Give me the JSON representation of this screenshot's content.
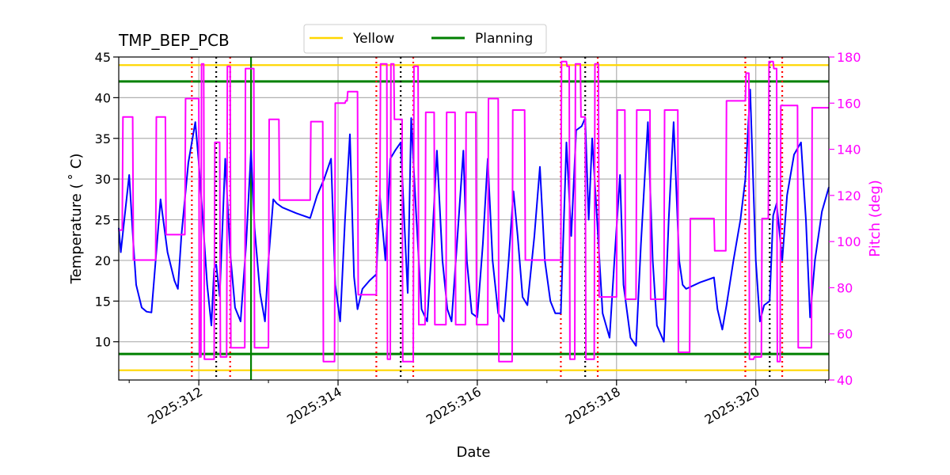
{
  "chart_data": {
    "type": "line",
    "title": "TMP_BEP_PCB",
    "xlabel": "Date",
    "ylabel": "Temperature ($^\\circ$C)",
    "ylabel_display": "Temperature ( ˚ C)",
    "y2label": "Pitch (deg)",
    "xlim": [
      310.85,
      321.05
    ],
    "ylim": [
      5.3,
      45
    ],
    "y2lim": [
      40,
      180
    ],
    "x_ticks": [
      312,
      314,
      316,
      318,
      320
    ],
    "x_tick_labels": [
      "2025:312",
      "2025:314",
      "2025:316",
      "2025:318",
      "2025:320"
    ],
    "x_minor_ticks": [
      311,
      313,
      315,
      317,
      319,
      321
    ],
    "y_ticks": [
      10,
      15,
      20,
      25,
      30,
      35,
      40,
      45
    ],
    "y_tick_labels": [
      "10",
      "15",
      "20",
      "25",
      "30",
      "35",
      "40",
      "45"
    ],
    "y2_ticks": [
      40,
      60,
      80,
      100,
      120,
      140,
      160,
      180
    ],
    "y2_tick_labels": [
      "40",
      "60",
      "80",
      "100",
      "120",
      "140",
      "160",
      "180"
    ],
    "grid": true,
    "legend": {
      "placement": "top-center",
      "entries": [
        {
          "label": "Yellow",
          "color": "#ffd700"
        },
        {
          "label": "Planning",
          "color": "#008000"
        }
      ]
    },
    "limits": [
      {
        "name": "yellow-high",
        "value": 44,
        "color": "#ffd700"
      },
      {
        "name": "yellow-low",
        "value": 6.5,
        "color": "#ffd700"
      },
      {
        "name": "planning-high",
        "value": 42,
        "color": "#008000"
      },
      {
        "name": "planning-low",
        "value": 8.5,
        "color": "#008000"
      }
    ],
    "vlines": [
      {
        "x": 311.9,
        "color": "#ff0000",
        "style": "dotted"
      },
      {
        "x": 312.25,
        "color": "#000000",
        "style": "dotted"
      },
      {
        "x": 312.45,
        "color": "#ff0000",
        "style": "dotted"
      },
      {
        "x": 312.75,
        "color": "#008000",
        "style": "solid"
      },
      {
        "x": 314.55,
        "color": "#ff0000",
        "style": "dotted"
      },
      {
        "x": 314.9,
        "color": "#000000",
        "style": "dotted"
      },
      {
        "x": 315.08,
        "color": "#ff0000",
        "style": "dotted"
      },
      {
        "x": 317.2,
        "color": "#ff0000",
        "style": "dotted"
      },
      {
        "x": 317.55,
        "color": "#000000",
        "style": "dotted"
      },
      {
        "x": 317.73,
        "color": "#ff0000",
        "style": "dotted"
      },
      {
        "x": 319.85,
        "color": "#ff0000",
        "style": "dotted"
      },
      {
        "x": 320.2,
        "color": "#000000",
        "style": "dotted"
      },
      {
        "x": 320.38,
        "color": "#ff0000",
        "style": "dotted"
      }
    ],
    "series": [
      {
        "name": "Temperature",
        "axis": "left",
        "color": "#0000ff",
        "x": [
          310.85,
          310.88,
          310.93,
          311.0,
          311.06,
          311.1,
          311.18,
          311.25,
          311.32,
          311.38,
          311.45,
          311.55,
          311.65,
          311.7,
          311.75,
          311.85,
          311.95,
          312.0,
          312.05,
          312.12,
          312.18,
          312.22,
          312.25,
          312.3,
          312.38,
          312.45,
          312.52,
          312.6,
          312.68,
          312.75,
          312.8,
          312.88,
          312.95,
          313.0,
          313.07,
          313.12,
          313.2,
          313.4,
          313.6,
          313.7,
          313.8,
          313.9,
          313.96,
          314.03,
          314.1,
          314.17,
          314.23,
          314.28,
          314.35,
          314.45,
          314.55,
          314.6,
          314.68,
          314.75,
          314.82,
          314.9,
          314.95,
          315.0,
          315.05,
          315.12,
          315.2,
          315.28,
          315.35,
          315.42,
          315.5,
          315.57,
          315.63,
          315.7,
          315.8,
          315.85,
          315.92,
          316.0,
          316.08,
          316.15,
          316.22,
          316.3,
          316.38,
          316.45,
          316.52,
          316.58,
          316.65,
          316.72,
          316.82,
          316.9,
          316.97,
          317.05,
          317.12,
          317.2,
          317.28,
          317.35,
          317.42,
          317.5,
          317.55,
          317.6,
          317.65,
          317.72,
          317.8,
          317.9,
          317.97,
          318.05,
          318.1,
          318.2,
          318.28,
          318.35,
          318.45,
          318.52,
          318.58,
          318.68,
          318.75,
          318.82,
          318.9,
          318.95,
          319.0,
          319.2,
          319.4,
          319.45,
          319.52,
          319.58,
          319.68,
          319.78,
          319.85,
          319.92,
          320.0,
          320.06,
          320.12,
          320.2,
          320.25,
          320.3,
          320.38,
          320.45,
          320.55,
          320.65,
          320.72,
          320.78,
          320.85,
          320.95,
          321.05
        ],
        "y": [
          24,
          21,
          25,
          30.5,
          22,
          17,
          14.2,
          13.7,
          13.6,
          20,
          27.5,
          21,
          17.5,
          16.5,
          23,
          32,
          37,
          32,
          26,
          17,
          12,
          19,
          19.5,
          15.6,
          32.5,
          21,
          14.2,
          12.5,
          22,
          33.5,
          24,
          16,
          12.5,
          20,
          27.5,
          27,
          26.5,
          25.8,
          25.2,
          28,
          30,
          32.5,
          17,
          12.5,
          25,
          35.5,
          18,
          14,
          16.5,
          17.5,
          18.3,
          28,
          20,
          32.5,
          33.5,
          34.5,
          25,
          16,
          37.5,
          26,
          14,
          12.5,
          22,
          33.5,
          20,
          14,
          12.5,
          21,
          33.5,
          20,
          13.5,
          13,
          22,
          32.5,
          20,
          13.5,
          12.5,
          20,
          28.5,
          23,
          15.5,
          14.5,
          23,
          31.5,
          20,
          15,
          13.5,
          13.5,
          34.5,
          23,
          36,
          36.5,
          37.5,
          25,
          35,
          25,
          13.5,
          10.5,
          20,
          30.5,
          17,
          10.5,
          9.5,
          22,
          37,
          20,
          12,
          10,
          25,
          37,
          20,
          17,
          16.5,
          17.3,
          17.9,
          14,
          11.5,
          14.5,
          20,
          25,
          30,
          41,
          20,
          12.5,
          14.5,
          15,
          25.5,
          27,
          20,
          28,
          33,
          34.5,
          25,
          13,
          20,
          26,
          29
        ]
      },
      {
        "name": "Pitch",
        "axis": "right",
        "color": "#ff00ff",
        "x": [
          310.85,
          310.9,
          310.91,
          311.05,
          311.06,
          311.38,
          311.39,
          311.52,
          311.53,
          311.8,
          311.81,
          312.0,
          312.01,
          312.03,
          312.04,
          312.07,
          312.08,
          312.22,
          312.23,
          312.3,
          312.31,
          312.4,
          312.41,
          312.45,
          312.46,
          312.66,
          312.67,
          312.79,
          312.8,
          313.0,
          313.01,
          313.15,
          313.16,
          313.6,
          313.61,
          313.78,
          313.79,
          313.95,
          313.96,
          314.1,
          314.11,
          314.13,
          314.14,
          314.28,
          314.29,
          314.55,
          314.56,
          314.6,
          314.61,
          314.7,
          314.71,
          314.75,
          314.76,
          314.8,
          314.81,
          314.92,
          314.93,
          315.08,
          315.09,
          315.15,
          315.16,
          315.25,
          315.26,
          315.38,
          315.39,
          315.55,
          315.56,
          315.68,
          315.69,
          315.83,
          315.84,
          315.98,
          315.99,
          316.15,
          316.16,
          316.3,
          316.31,
          316.5,
          316.51,
          316.68,
          316.69,
          316.82,
          316.83,
          317.2,
          317.21,
          317.28,
          317.29,
          317.32,
          317.33,
          317.4,
          317.41,
          317.48,
          317.49,
          317.55,
          317.56,
          317.68,
          317.69,
          317.74,
          317.75,
          318.0,
          318.01,
          318.12,
          318.13,
          318.28,
          318.29,
          318.48,
          318.49,
          318.68,
          318.69,
          318.88,
          318.89,
          319.05,
          319.06,
          319.4,
          319.41,
          319.57,
          319.58,
          319.72,
          319.73,
          319.85,
          319.86,
          319.9,
          319.91,
          319.97,
          319.98,
          320.08,
          320.09,
          320.18,
          320.19,
          320.25,
          320.26,
          320.3,
          320.31,
          320.35,
          320.36,
          320.6,
          320.61,
          320.8,
          320.81,
          321.05
        ],
        "y": [
          105,
          105,
          154,
          154,
          92,
          92,
          154,
          154,
          103,
          103,
          162,
          162,
          50,
          50,
          177,
          177,
          49,
          49,
          143,
          143,
          50,
          50,
          176,
          176,
          54,
          54,
          175,
          175,
          54,
          54,
          153,
          153,
          118,
          118,
          152,
          152,
          48,
          48,
          160,
          160,
          161,
          161,
          165,
          165,
          77,
          77,
          110,
          110,
          177,
          177,
          49,
          49,
          177,
          177,
          153,
          153,
          48,
          48,
          176,
          176,
          64,
          64,
          156,
          156,
          64,
          64,
          156,
          156,
          64,
          64,
          156,
          156,
          64,
          64,
          162,
          162,
          48,
          48,
          157,
          157,
          92,
          92,
          92,
          92,
          178,
          178,
          176,
          176,
          49,
          49,
          177,
          177,
          154,
          154,
          49,
          49,
          177,
          177,
          76,
          76,
          157,
          157,
          75,
          75,
          157,
          157,
          75,
          75,
          157,
          157,
          52,
          52,
          110,
          110,
          96,
          96,
          161,
          161,
          161,
          161,
          173,
          173,
          49,
          49,
          50,
          50,
          110,
          110,
          178,
          178,
          175,
          175,
          48,
          48,
          159,
          159,
          54,
          54,
          158,
          158
        ]
      }
    ]
  }
}
